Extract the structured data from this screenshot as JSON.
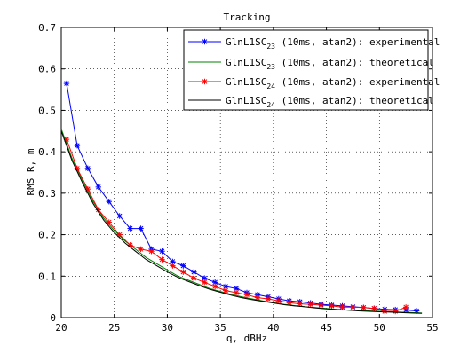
{
  "chart_data": {
    "type": "line",
    "title": "Tracking",
    "xlabel": "q, dBHz",
    "ylabel": "RMS R, m",
    "xlim": [
      20,
      55
    ],
    "ylim": [
      0,
      0.7
    ],
    "xticks": [
      20,
      25,
      30,
      35,
      40,
      45,
      50,
      55
    ],
    "yticks": [
      0,
      0.1,
      0.2,
      0.3,
      0.4,
      0.5,
      0.6,
      0.7
    ],
    "grid": true,
    "legend_position": "top-right",
    "series": [
      {
        "name": "GlnL1SC23 (10ms, atan2): experimental",
        "label_parts": [
          "GlnL1SC",
          "23",
          " (10ms, atan2): experimental"
        ],
        "color": "#0000ff",
        "marker": "asterisk",
        "x": [
          20.5,
          21.5,
          22.5,
          23.5,
          24.5,
          25.5,
          26.5,
          27.5,
          28.5,
          29.5,
          30.5,
          31.5,
          32.5,
          33.5,
          34.5,
          35.5,
          36.5,
          37.5,
          38.5,
          39.5,
          40.5,
          41.5,
          42.5,
          43.5,
          44.5,
          45.5,
          46.5,
          47.5,
          48.5,
          49.5,
          50.5,
          51.5,
          52.5,
          53.5
        ],
        "y": [
          0.565,
          0.415,
          0.36,
          0.315,
          0.28,
          0.245,
          0.215,
          0.215,
          0.165,
          0.16,
          0.135,
          0.125,
          0.11,
          0.095,
          0.085,
          0.075,
          0.07,
          0.06,
          0.055,
          0.05,
          0.045,
          0.04,
          0.038,
          0.035,
          0.032,
          0.03,
          0.028,
          0.026,
          0.024,
          0.022,
          0.02,
          0.019,
          0.018,
          0.016
        ]
      },
      {
        "name": "GlnL1SC23 (10ms, atan2): theoretical",
        "label_parts": [
          "GlnL1SC",
          "23",
          " (10ms, atan2): theoretical"
        ],
        "color": "#008000",
        "marker": "none",
        "x": [
          20,
          21,
          22,
          23,
          24,
          25,
          26,
          27,
          28,
          29,
          30,
          31,
          32,
          33,
          34,
          35,
          36,
          37,
          38,
          39,
          40,
          41,
          42,
          43,
          44,
          45,
          46,
          47,
          48,
          49,
          50,
          51,
          52,
          53,
          54
        ],
        "y": [
          0.455,
          0.385,
          0.33,
          0.28,
          0.24,
          0.21,
          0.185,
          0.165,
          0.145,
          0.13,
          0.115,
          0.1,
          0.09,
          0.08,
          0.07,
          0.063,
          0.056,
          0.05,
          0.045,
          0.04,
          0.036,
          0.032,
          0.029,
          0.026,
          0.024,
          0.022,
          0.02,
          0.018,
          0.017,
          0.016,
          0.015,
          0.014,
          0.013,
          0.012,
          0.011
        ]
      },
      {
        "name": "GlnL1SC24 (10ms, atan2): experimental",
        "label_parts": [
          "GlnL1SC",
          "24",
          " (10ms, atan2): experimental"
        ],
        "color": "#ff0000",
        "marker": "asterisk",
        "x": [
          20.5,
          21.5,
          22.5,
          23.5,
          24.5,
          25.5,
          26.5,
          27.5,
          28.5,
          29.5,
          30.5,
          31.5,
          32.5,
          33.5,
          34.5,
          35.5,
          36.5,
          37.5,
          38.5,
          39.5,
          40.5,
          41.5,
          42.5,
          43.5,
          44.5,
          45.5,
          46.5,
          47.5,
          48.5,
          49.5,
          50.5,
          51.5,
          52.5
        ],
        "y": [
          0.43,
          0.36,
          0.31,
          0.26,
          0.23,
          0.2,
          0.175,
          0.165,
          0.16,
          0.14,
          0.125,
          0.11,
          0.095,
          0.085,
          0.075,
          0.065,
          0.06,
          0.055,
          0.048,
          0.045,
          0.04,
          0.036,
          0.033,
          0.032,
          0.03,
          0.028,
          0.025,
          0.025,
          0.024,
          0.022,
          0.015,
          0.015,
          0.025
        ]
      },
      {
        "name": "GlnL1SC24 (10ms, atan2): theoretical",
        "label_parts": [
          "GlnL1SC",
          "24",
          " (10ms, atan2): theoretical"
        ],
        "color": "#000000",
        "marker": "none",
        "x": [
          20,
          21,
          22,
          23,
          24,
          25,
          26,
          27,
          28,
          29,
          30,
          31,
          32,
          33,
          34,
          35,
          36,
          37,
          38,
          39,
          40,
          41,
          42,
          43,
          44,
          45,
          46,
          47,
          48,
          49,
          50,
          51,
          52,
          53,
          54
        ],
        "y": [
          0.45,
          0.38,
          0.325,
          0.275,
          0.235,
          0.205,
          0.18,
          0.16,
          0.14,
          0.125,
          0.11,
          0.097,
          0.087,
          0.077,
          0.068,
          0.061,
          0.054,
          0.048,
          0.043,
          0.039,
          0.035,
          0.031,
          0.028,
          0.026,
          0.023,
          0.021,
          0.019,
          0.018,
          0.016,
          0.015,
          0.014,
          0.013,
          0.012,
          0.011,
          0.01
        ]
      }
    ]
  }
}
